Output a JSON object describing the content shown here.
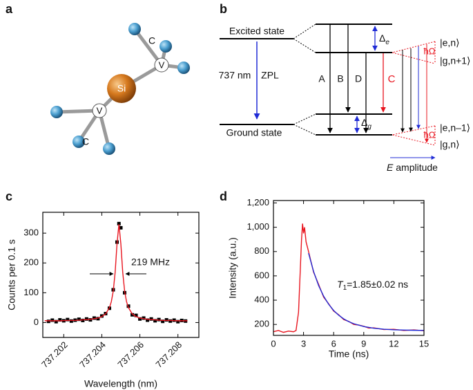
{
  "panel_a": {
    "label": "a",
    "atoms": {
      "si": "Si",
      "v_top": "V",
      "v_bottom": "V",
      "c_top": "C",
      "c_bottom": "C"
    }
  },
  "panel_b": {
    "label": "b",
    "excited_state": "Excited state",
    "ground_state": "Ground state",
    "wavelength": "737 nm",
    "zpl": "ZPL",
    "transitions": [
      "A",
      "B",
      "D",
      "C"
    ],
    "delta_e": {
      "symbol": "Δ",
      "sub": "e"
    },
    "delta_g": {
      "symbol": "Δ",
      "sub": "g"
    },
    "hbar_omega_top": "ħΩ",
    "hbar_omega_bottom": "ħΩ",
    "states": [
      "|e,n⟩",
      "|g,n+1⟩",
      "|e,n–1⟩",
      "|g,n⟩"
    ],
    "field": {
      "symbol": "E",
      "text": "amplitude"
    }
  },
  "chart_data": [
    {
      "type": "scatter",
      "panel_label": "c",
      "x_label": "Wavelength (nm)",
      "y_label": "Counts per 0.1 s",
      "annotation": "219 MHz",
      "xlim": [
        737.2009,
        737.2091
      ],
      "ylim": [
        -50,
        370
      ],
      "xticks": [
        737.202,
        737.204,
        737.206,
        737.208
      ],
      "yticks": [
        0,
        100,
        200,
        300
      ],
      "series": [
        {
          "kind": "scatter",
          "color": "#000000",
          "x": [
            737.2012,
            737.2014,
            737.2016,
            737.2018,
            737.202,
            737.2022,
            737.2024,
            737.2026,
            737.2028,
            737.203,
            737.2032,
            737.2034,
            737.2036,
            737.2038,
            737.204,
            737.2042,
            737.2044,
            737.2046,
            737.2048,
            737.2049,
            737.205,
            737.2052,
            737.2054,
            737.2056,
            737.2058,
            737.206,
            737.2062,
            737.2064,
            737.2066,
            737.2068,
            737.207,
            737.2072,
            737.2074,
            737.2076,
            737.2078,
            737.208,
            737.2082,
            737.2084
          ],
          "values": [
            4,
            8,
            3,
            9,
            6,
            10,
            5,
            8,
            11,
            7,
            12,
            9,
            15,
            13,
            22,
            30,
            48,
            110,
            270,
            332,
            318,
            100,
            55,
            26,
            24,
            12,
            15,
            8,
            12,
            6,
            10,
            4,
            9,
            5,
            8,
            3,
            7,
            5
          ]
        },
        {
          "kind": "line",
          "color": "#e8141e",
          "x": [
            737.201,
            737.2014,
            737.2018,
            737.2022,
            737.2026,
            737.203,
            737.2034,
            737.2038,
            737.204,
            737.2042,
            737.2044,
            737.2045,
            737.2046,
            737.2047,
            737.2048,
            737.2049,
            737.205,
            737.2051,
            737.2052,
            737.2053,
            737.2054,
            737.2056,
            737.2058,
            737.206,
            737.2064,
            737.2068,
            737.2072,
            737.2076,
            737.208,
            737.2085
          ],
          "values": [
            6,
            6,
            6,
            7,
            7,
            9,
            11,
            15,
            20,
            29,
            50,
            70,
            105,
            168,
            265,
            330,
            265,
            168,
            105,
            70,
            50,
            29,
            20,
            15,
            11,
            9,
            7,
            7,
            6,
            6
          ]
        }
      ]
    },
    {
      "type": "line",
      "panel_label": "d",
      "x_label": "Time (ns)",
      "y_label": "Intensity (a.u.)",
      "annotation": {
        "symbol": "T",
        "sub": "1",
        "text": "=1.85±0.02 ns"
      },
      "xlim": [
        0,
        15
      ],
      "ylim": [
        110,
        1220
      ],
      "xticks": [
        0,
        3,
        6,
        9,
        12,
        15
      ],
      "yticks": [
        200,
        400,
        600,
        800,
        {
          "value": 1000,
          "label": "1,000"
        },
        {
          "value": 1200,
          "label": "1,200"
        }
      ],
      "series": [
        {
          "kind": "line",
          "color": "#e8141e",
          "x": [
            0,
            0.5,
            1,
            1.5,
            2,
            2.25,
            2.5,
            2.7,
            2.8,
            2.9,
            3,
            3.1,
            3.25,
            3.5,
            4,
            4.5,
            5,
            5.5,
            6,
            6.5,
            7,
            7.5,
            8,
            8.5,
            9,
            9.5,
            10,
            11,
            12,
            13,
            14,
            15
          ],
          "values": [
            140,
            150,
            135,
            145,
            140,
            150,
            300,
            700,
            900,
            1030,
            950,
            1000,
            880,
            800,
            630,
            530,
            425,
            370,
            310,
            280,
            240,
            225,
            200,
            195,
            185,
            170,
            172,
            158,
            160,
            150,
            155,
            148
          ]
        },
        {
          "kind": "line",
          "color": "#1f2bd6",
          "x": [
            3.5,
            4,
            4.5,
            5,
            5.5,
            6,
            6.5,
            7,
            7.5,
            8,
            9,
            10,
            11,
            12,
            13,
            14,
            15
          ],
          "values": [
            786,
            636,
            520,
            433,
            366,
            315,
            276,
            246,
            223,
            206,
            183,
            169,
            161,
            156,
            154,
            152,
            151
          ]
        }
      ]
    }
  ]
}
